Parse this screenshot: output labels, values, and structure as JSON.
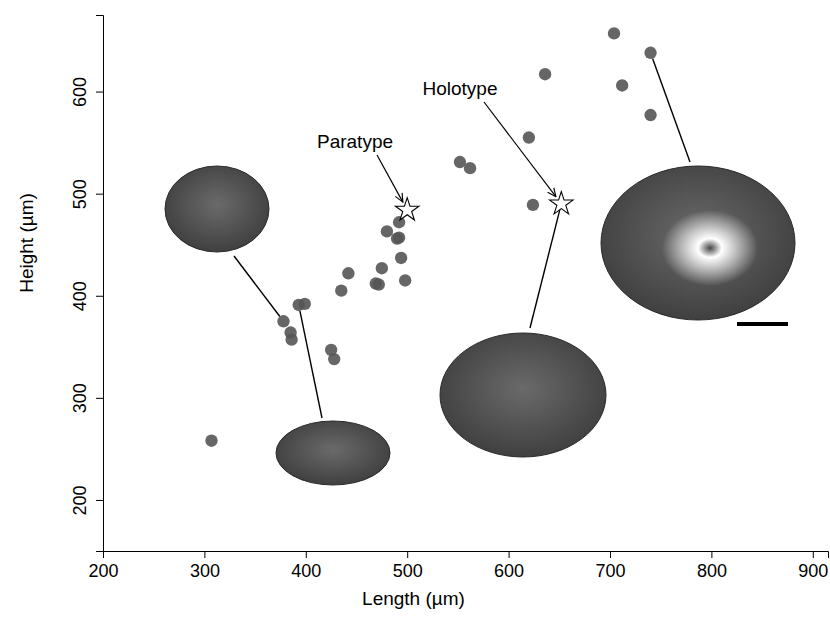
{
  "chart_data": {
    "type": "scatter",
    "x_label": "Length (µm)",
    "y_label": "Height (µm)",
    "x": [
      307,
      378,
      385,
      386,
      393,
      399,
      425,
      428,
      435,
      442,
      469,
      472,
      475,
      480,
      490,
      492,
      492,
      494,
      498,
      552,
      562,
      620,
      624,
      636,
      704,
      712,
      740,
      740
    ],
    "y": [
      258,
      375,
      364,
      357,
      391,
      392,
      347,
      338,
      405,
      422,
      412,
      411,
      427,
      463,
      456,
      457,
      472,
      437,
      415,
      531,
      525,
      555,
      489,
      617,
      657,
      606,
      638,
      577
    ],
    "color": "#555555",
    "marker": "circle",
    "annotations": [
      {
        "text": "Paratype",
        "x": 500,
        "y": 484,
        "marker": "star"
      },
      {
        "text": "Holotype",
        "x": 652,
        "y": 490,
        "marker": "star"
      }
    ],
    "xlim": [
      200,
      915
    ],
    "ylim": [
      150,
      675
    ],
    "xticks": [
      200,
      300,
      400,
      500,
      600,
      700,
      800,
      900
    ],
    "yticks": [
      200,
      300,
      400,
      500,
      600
    ],
    "grid": false
  }
}
